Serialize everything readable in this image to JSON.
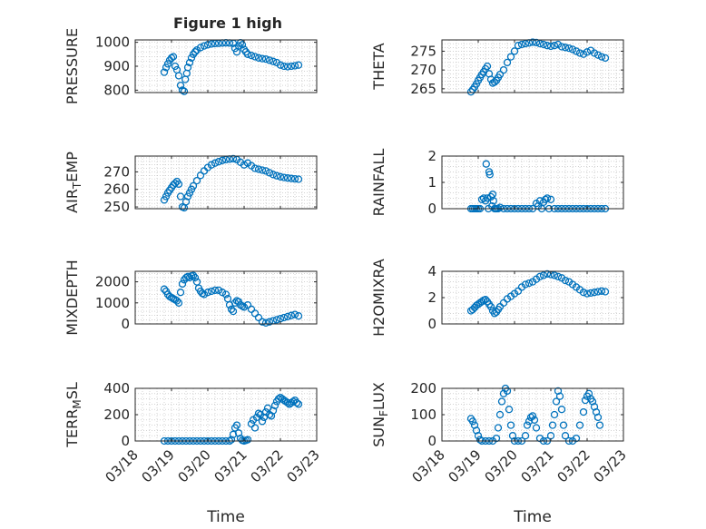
{
  "figure": {
    "title": "Figure 1 high",
    "marker_color": "#0072BD",
    "axis_color": "#262626",
    "grid_color": "#b8b8b8"
  },
  "chart_data": [
    {
      "type": "scatter",
      "ylabel": "PRESSURE",
      "ylim": [
        790,
        1010
      ],
      "yticks": [
        800,
        900,
        1000
      ],
      "xlim": [
        18,
        23
      ],
      "xticklabels": [
        "03/18",
        "03/19",
        "03/20",
        "03/21",
        "03/22",
        "03/23"
      ],
      "show_xticklabels": false,
      "xlabel": "",
      "x": [
        18.8,
        18.85,
        18.9,
        18.95,
        19.0,
        19.05,
        19.1,
        19.15,
        19.2,
        19.25,
        19.3,
        19.35,
        19.38,
        19.42,
        19.45,
        19.5,
        19.55,
        19.6,
        19.65,
        19.7,
        19.8,
        19.9,
        20.0,
        20.1,
        20.2,
        20.3,
        20.4,
        20.5,
        20.6,
        20.7,
        20.75,
        20.8,
        20.85,
        20.9,
        20.95,
        21.0,
        21.05,
        21.1,
        21.2,
        21.3,
        21.4,
        21.5,
        21.6,
        21.7,
        21.8,
        21.9,
        22.0,
        22.1,
        22.2,
        22.3,
        22.4,
        22.5
      ],
      "y": [
        875,
        895,
        910,
        925,
        935,
        940,
        900,
        885,
        860,
        820,
        800,
        795,
        845,
        870,
        895,
        915,
        935,
        950,
        960,
        968,
        978,
        985,
        990,
        993,
        995,
        996,
        997,
        998,
        997,
        996,
        975,
        960,
        985,
        998,
        990,
        970,
        960,
        950,
        945,
        940,
        935,
        932,
        930,
        925,
        920,
        915,
        905,
        900,
        898,
        900,
        902,
        905
      ]
    },
    {
      "type": "scatter",
      "ylabel": "THETA",
      "ylim": [
        264,
        278
      ],
      "yticks": [
        265,
        270,
        275
      ],
      "xlim": [
        18,
        23
      ],
      "xticklabels": [
        "03/18",
        "03/19",
        "03/20",
        "03/21",
        "03/22",
        "03/23"
      ],
      "show_xticklabels": false,
      "xlabel": "",
      "x": [
        18.8,
        18.85,
        18.9,
        18.95,
        19.0,
        19.05,
        19.1,
        19.15,
        19.2,
        19.25,
        19.3,
        19.35,
        19.4,
        19.45,
        19.5,
        19.55,
        19.6,
        19.7,
        19.8,
        19.9,
        20.0,
        20.1,
        20.2,
        20.3,
        20.4,
        20.5,
        20.6,
        20.7,
        20.8,
        20.9,
        21.0,
        21.1,
        21.2,
        21.3,
        21.4,
        21.5,
        21.6,
        21.7,
        21.8,
        21.9,
        22.0,
        22.1,
        22.2,
        22.3,
        22.4,
        22.5
      ],
      "y": [
        264.2,
        264.8,
        265.5,
        266.3,
        267.2,
        268.0,
        268.8,
        269.5,
        270.3,
        271.0,
        269.0,
        267.5,
        266.5,
        266.8,
        267.2,
        268.0,
        268.8,
        270.0,
        272.0,
        273.5,
        275.0,
        276.5,
        276.8,
        277.0,
        277.2,
        277.4,
        277.3,
        277.0,
        276.8,
        276.5,
        276.3,
        276.5,
        276.8,
        276.2,
        276.0,
        275.8,
        275.5,
        275.0,
        274.5,
        274.2,
        274.8,
        275.2,
        274.5,
        274.0,
        273.5,
        273.2
      ]
    },
    {
      "type": "scatter",
      "ylabel": "AIR_TEMP",
      "ylim": [
        249,
        279
      ],
      "yticks": [
        250,
        260,
        270
      ],
      "xlim": [
        18,
        23
      ],
      "xticklabels": [
        "03/18",
        "03/19",
        "03/20",
        "03/21",
        "03/22",
        "03/23"
      ],
      "show_xticklabels": false,
      "xlabel": "",
      "x": [
        18.8,
        18.85,
        18.9,
        18.95,
        19.0,
        19.05,
        19.1,
        19.15,
        19.2,
        19.25,
        19.3,
        19.35,
        19.4,
        19.45,
        19.5,
        19.55,
        19.6,
        19.7,
        19.8,
        19.9,
        20.0,
        20.1,
        20.2,
        20.3,
        20.4,
        20.5,
        20.6,
        20.7,
        20.8,
        20.9,
        21.0,
        21.1,
        21.2,
        21.3,
        21.4,
        21.5,
        21.6,
        21.7,
        21.8,
        21.9,
        22.0,
        22.1,
        22.2,
        22.3,
        22.4,
        22.5
      ],
      "y": [
        254,
        256,
        258,
        259.5,
        261,
        262.5,
        263.5,
        264.5,
        263,
        256,
        250,
        249.5,
        253,
        256,
        258,
        260,
        262,
        265,
        268,
        270.5,
        272.5,
        274,
        275,
        275.8,
        276.5,
        277,
        277.3,
        277.5,
        277,
        275.5,
        274,
        275,
        273.5,
        272,
        271.5,
        271,
        270.5,
        269.5,
        268.5,
        267.8,
        267.2,
        266.8,
        266.5,
        266.2,
        266,
        265.8
      ]
    },
    {
      "type": "scatter",
      "ylabel": "RAINFALL",
      "ylim": [
        0,
        2
      ],
      "yticks": [
        0,
        1,
        2
      ],
      "xlim": [
        18,
        23
      ],
      "xticklabels": [
        "03/18",
        "03/19",
        "03/20",
        "03/21",
        "03/22",
        "03/23"
      ],
      "show_xticklabels": false,
      "xlabel": "",
      "x": [
        18.8,
        18.85,
        18.9,
        18.95,
        19.0,
        19.05,
        19.1,
        19.15,
        19.2,
        19.22,
        19.25,
        19.28,
        19.3,
        19.32,
        19.35,
        19.38,
        19.4,
        19.42,
        19.45,
        19.48,
        19.5,
        19.55,
        19.6,
        19.7,
        19.8,
        19.9,
        20.0,
        20.1,
        20.2,
        20.3,
        20.4,
        20.5,
        20.6,
        20.65,
        20.7,
        20.75,
        20.8,
        20.85,
        20.9,
        20.95,
        21.0,
        21.1,
        21.2,
        21.3,
        21.4,
        21.5,
        21.6,
        21.7,
        21.8,
        21.9,
        22.0,
        22.1,
        22.2,
        22.3,
        22.4,
        22.5
      ],
      "y": [
        0,
        0,
        0,
        0,
        0,
        0,
        0.35,
        0.4,
        0.3,
        1.7,
        0.4,
        0,
        1.4,
        1.3,
        0.45,
        0.1,
        0.55,
        0.3,
        0,
        0,
        0,
        0,
        0.05,
        0,
        0,
        0,
        0,
        0,
        0,
        0,
        0,
        0,
        0.2,
        0.1,
        0.3,
        0,
        0.25,
        0.35,
        0.4,
        0,
        0.35,
        0,
        0,
        0,
        0,
        0,
        0,
        0,
        0,
        0,
        0,
        0,
        0,
        0,
        0,
        0
      ]
    },
    {
      "type": "scatter",
      "ylabel": "MIXDEPTH",
      "ylim": [
        0,
        2500
      ],
      "yticks": [
        0,
        1000,
        2000
      ],
      "xlim": [
        18,
        23
      ],
      "xticklabels": [
        "03/18",
        "03/19",
        "03/20",
        "03/21",
        "03/22",
        "03/23"
      ],
      "show_xticklabels": false,
      "xlabel": "",
      "x": [
        18.8,
        18.85,
        18.9,
        18.95,
        19.0,
        19.05,
        19.1,
        19.15,
        19.2,
        19.25,
        19.3,
        19.35,
        19.4,
        19.45,
        19.5,
        19.55,
        19.6,
        19.65,
        19.7,
        19.75,
        19.8,
        19.85,
        19.9,
        20.0,
        20.1,
        20.2,
        20.3,
        20.4,
        20.5,
        20.55,
        20.6,
        20.65,
        20.7,
        20.75,
        20.8,
        20.85,
        20.9,
        20.95,
        21.0,
        21.1,
        21.2,
        21.3,
        21.4,
        21.5,
        21.6,
        21.7,
        21.8,
        21.9,
        22.0,
        22.1,
        22.2,
        22.3,
        22.4,
        22.5
      ],
      "y": [
        1650,
        1550,
        1400,
        1300,
        1250,
        1200,
        1150,
        1100,
        1000,
        1500,
        1900,
        2100,
        2200,
        2250,
        2200,
        2280,
        2300,
        2200,
        2000,
        1700,
        1550,
        1450,
        1400,
        1500,
        1550,
        1600,
        1600,
        1500,
        1400,
        1200,
        900,
        700,
        600,
        1000,
        1100,
        1050,
        900,
        850,
        800,
        900,
        700,
        500,
        300,
        100,
        50,
        100,
        150,
        200,
        250,
        300,
        350,
        400,
        450,
        380
      ]
    },
    {
      "type": "scatter",
      "ylabel": "H2OMIXRA",
      "ylim": [
        0,
        4
      ],
      "yticks": [
        0,
        2,
        4
      ],
      "xlim": [
        18,
        23
      ],
      "xticklabels": [
        "03/18",
        "03/19",
        "03/20",
        "03/21",
        "03/22",
        "03/23"
      ],
      "show_xticklabels": false,
      "xlabel": "",
      "x": [
        18.8,
        18.85,
        18.9,
        18.95,
        19.0,
        19.05,
        19.1,
        19.15,
        19.2,
        19.25,
        19.3,
        19.35,
        19.4,
        19.45,
        19.5,
        19.55,
        19.6,
        19.7,
        19.8,
        19.9,
        20.0,
        20.1,
        20.2,
        20.3,
        20.4,
        20.5,
        20.6,
        20.7,
        20.8,
        20.9,
        21.0,
        21.1,
        21.2,
        21.3,
        21.4,
        21.5,
        21.6,
        21.7,
        21.8,
        21.9,
        22.0,
        22.1,
        22.2,
        22.3,
        22.4,
        22.5
      ],
      "y": [
        1.0,
        1.1,
        1.25,
        1.4,
        1.5,
        1.6,
        1.7,
        1.8,
        1.85,
        1.7,
        1.5,
        1.3,
        1.0,
        0.8,
        0.9,
        1.1,
        1.3,
        1.6,
        1.9,
        2.1,
        2.3,
        2.5,
        2.8,
        3.0,
        3.1,
        3.2,
        3.4,
        3.6,
        3.7,
        3.8,
        3.75,
        3.7,
        3.6,
        3.5,
        3.3,
        3.2,
        3.0,
        2.8,
        2.6,
        2.4,
        2.3,
        2.35,
        2.4,
        2.45,
        2.5,
        2.45
      ]
    },
    {
      "type": "scatter",
      "ylabel": "TERR_MSL",
      "ylim": [
        0,
        400
      ],
      "yticks": [
        0,
        200,
        400
      ],
      "xlim": [
        18,
        23
      ],
      "xticklabels": [
        "03/18",
        "03/19",
        "03/20",
        "03/21",
        "03/22",
        "03/23"
      ],
      "show_xticklabels": true,
      "xlabel": "Time",
      "x": [
        18.8,
        18.9,
        19.0,
        19.1,
        19.2,
        19.3,
        19.4,
        19.5,
        19.6,
        19.7,
        19.8,
        19.9,
        20.0,
        20.1,
        20.2,
        20.3,
        20.4,
        20.5,
        20.6,
        20.65,
        20.7,
        20.75,
        20.8,
        20.85,
        20.9,
        20.95,
        21.0,
        21.05,
        21.1,
        21.2,
        21.25,
        21.3,
        21.35,
        21.4,
        21.45,
        21.5,
        21.55,
        21.6,
        21.65,
        21.7,
        21.75,
        21.8,
        21.85,
        21.9,
        21.95,
        22.0,
        22.05,
        22.1,
        22.15,
        22.2,
        22.25,
        22.3,
        22.35,
        22.4,
        22.45,
        22.5
      ],
      "y": [
        0,
        0,
        0,
        0,
        0,
        0,
        0,
        0,
        0,
        0,
        0,
        0,
        0,
        0,
        0,
        0,
        0,
        0,
        0,
        10,
        50,
        100,
        120,
        60,
        20,
        5,
        0,
        5,
        10,
        130,
        160,
        100,
        180,
        210,
        200,
        150,
        180,
        220,
        250,
        200,
        190,
        230,
        270,
        300,
        320,
        330,
        320,
        310,
        300,
        290,
        280,
        290,
        300,
        310,
        290,
        280
      ]
    },
    {
      "type": "scatter",
      "ylabel": "SUN_FLUX",
      "ylim": [
        0,
        200
      ],
      "yticks": [
        0,
        100,
        200
      ],
      "xlim": [
        18,
        23
      ],
      "xticklabels": [
        "03/18",
        "03/19",
        "03/20",
        "03/21",
        "03/22",
        "03/23"
      ],
      "show_xticklabels": true,
      "xlabel": "Time",
      "x": [
        18.8,
        18.85,
        18.9,
        18.95,
        19.0,
        19.05,
        19.1,
        19.2,
        19.3,
        19.4,
        19.5,
        19.55,
        19.6,
        19.65,
        19.7,
        19.75,
        19.8,
        19.85,
        19.9,
        19.95,
        20.0,
        20.1,
        20.2,
        20.3,
        20.35,
        20.4,
        20.45,
        20.5,
        20.55,
        20.6,
        20.7,
        20.8,
        20.9,
        21.0,
        21.05,
        21.1,
        21.15,
        21.2,
        21.25,
        21.3,
        21.35,
        21.4,
        21.5,
        21.6,
        21.7,
        21.8,
        21.9,
        21.95,
        22.0,
        22.05,
        22.1,
        22.15,
        22.2,
        22.25,
        22.3,
        22.35
      ],
      "y": [
        85,
        75,
        60,
        40,
        20,
        5,
        0,
        0,
        0,
        0,
        10,
        50,
        100,
        150,
        180,
        200,
        190,
        120,
        60,
        20,
        0,
        0,
        0,
        20,
        60,
        75,
        90,
        95,
        80,
        50,
        10,
        0,
        0,
        20,
        60,
        100,
        150,
        190,
        170,
        120,
        60,
        20,
        0,
        0,
        10,
        60,
        110,
        155,
        170,
        180,
        160,
        150,
        130,
        110,
        90,
        60
      ]
    }
  ]
}
